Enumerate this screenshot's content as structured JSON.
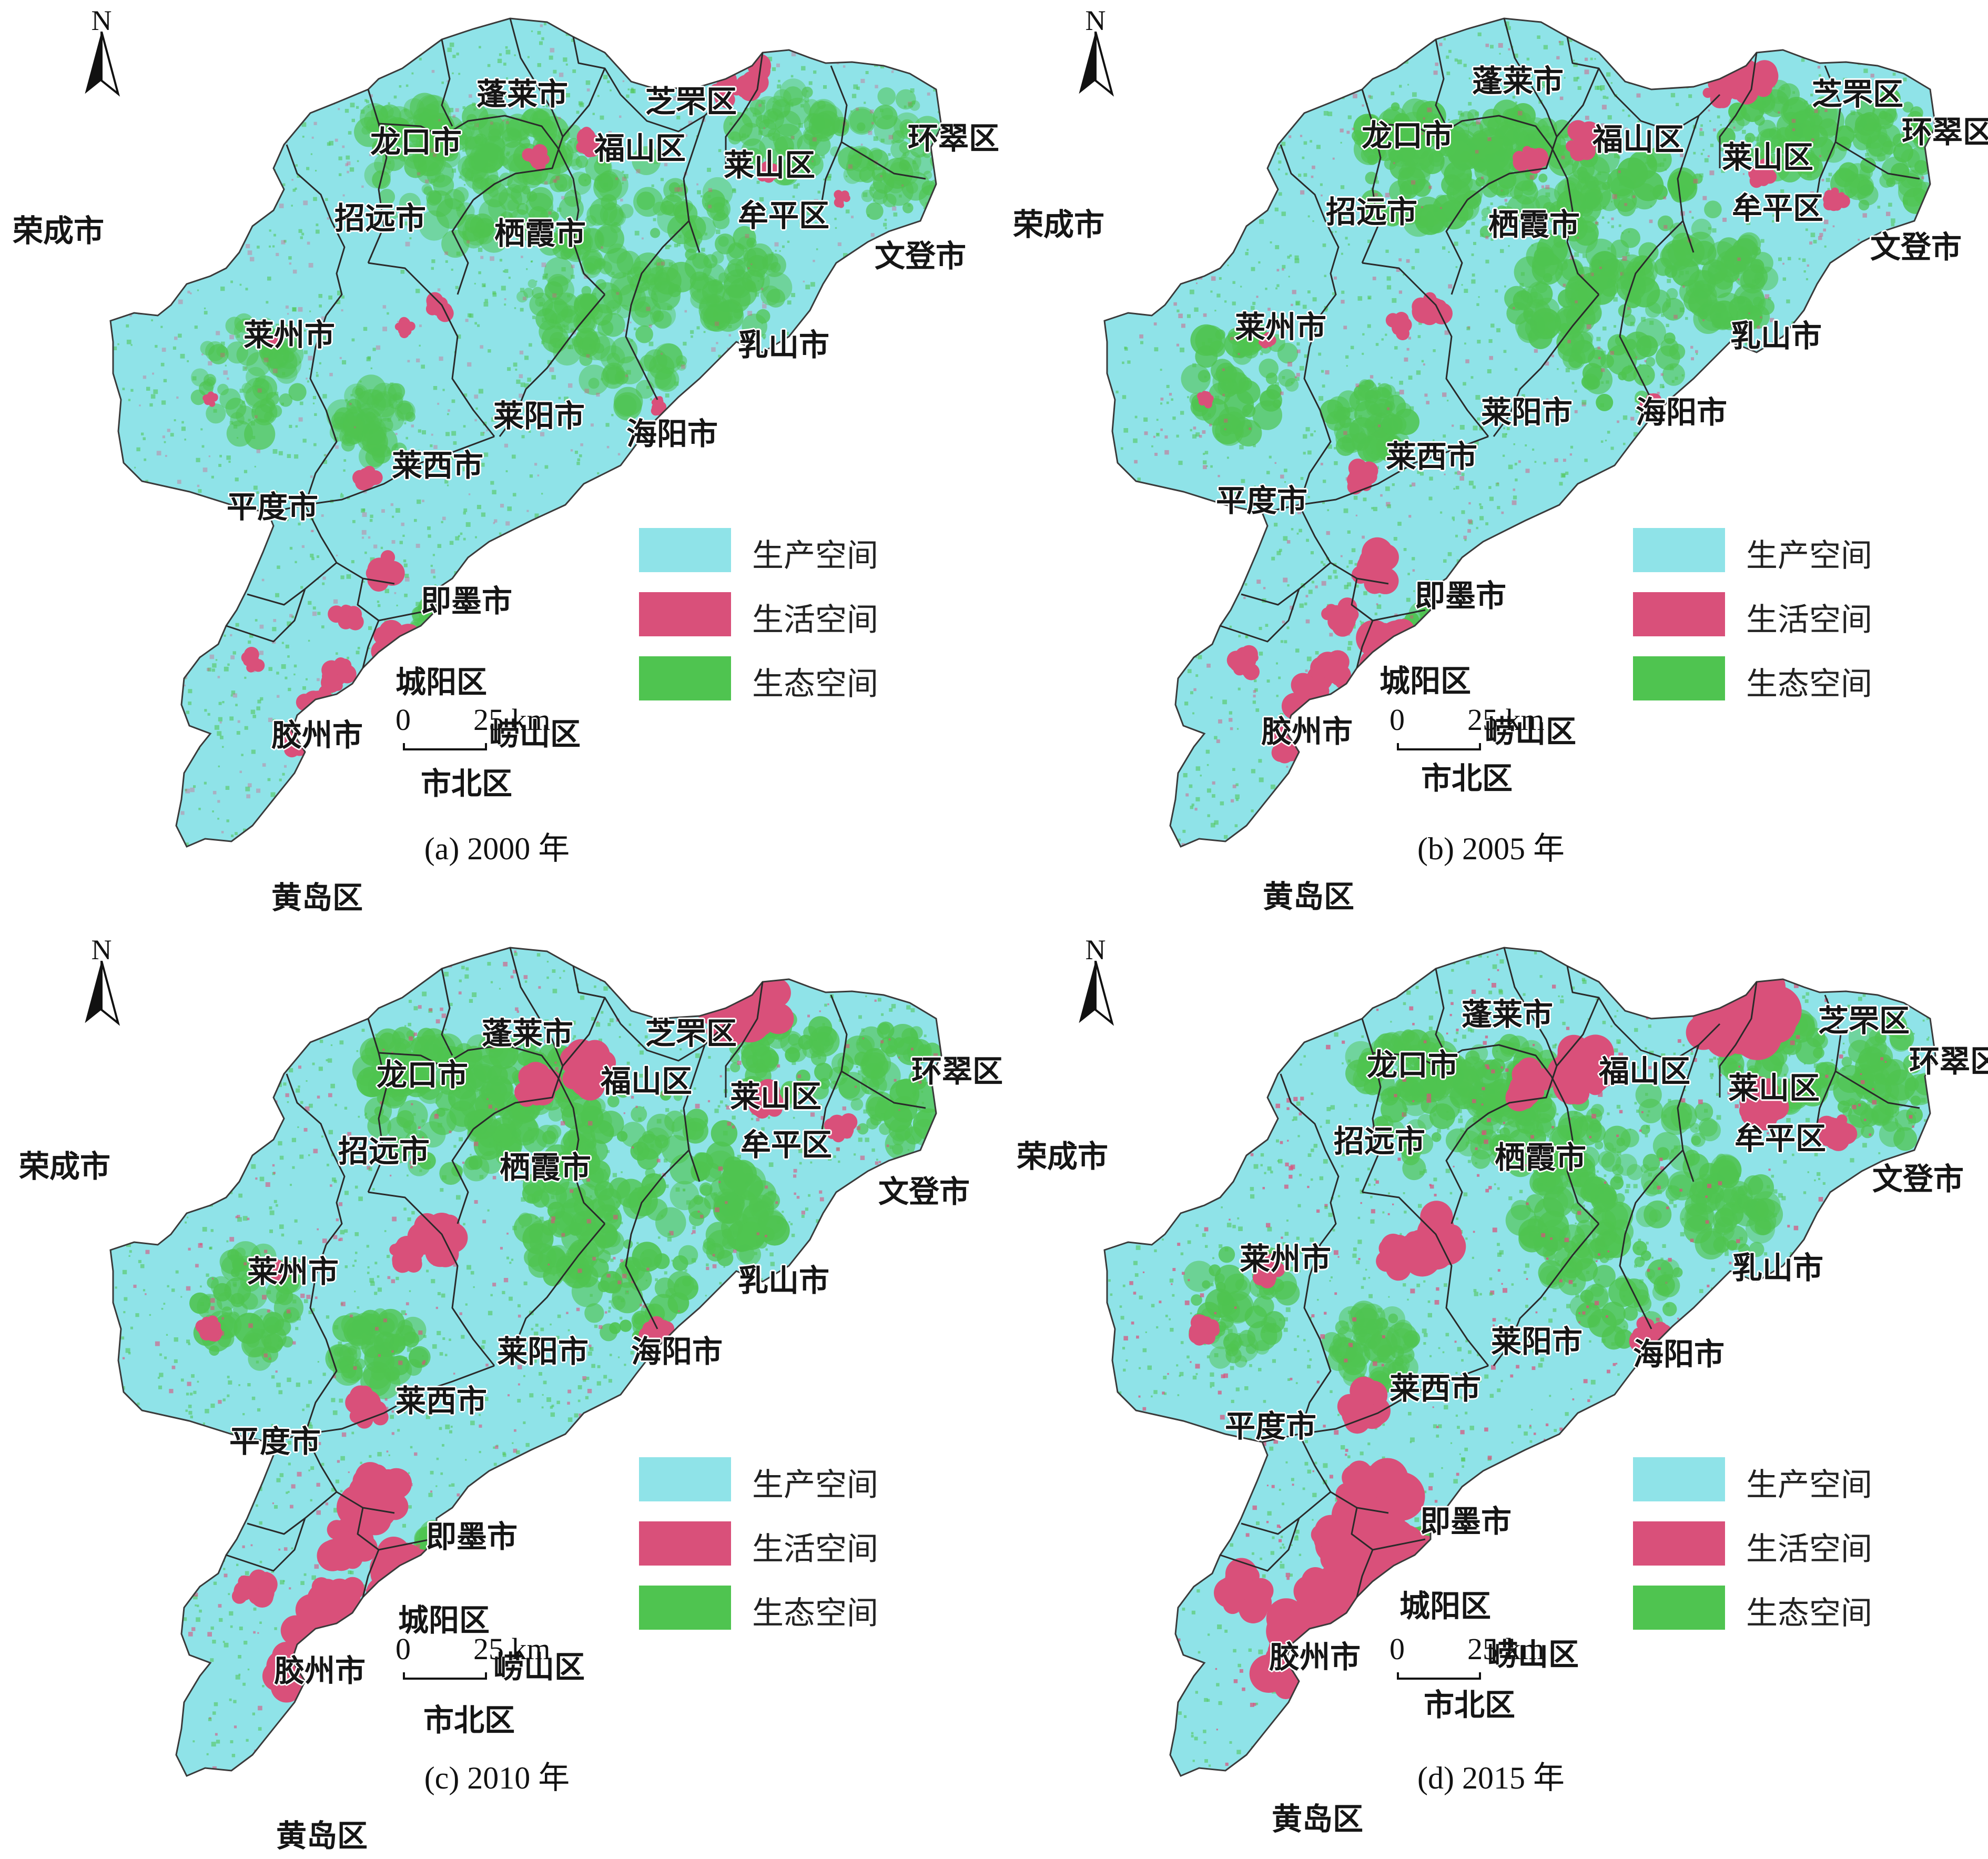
{
  "north_label": "N",
  "scale": {
    "zero": "0",
    "length": "25 km"
  },
  "legend": [
    {
      "label": "生产空间",
      "color": "#8fe3e8"
    },
    {
      "label": "生活空间",
      "color": "#d9507a"
    },
    {
      "label": "生态空间",
      "color": "#4fc450"
    }
  ],
  "districts": [
    "蓬莱市",
    "芝罘区",
    "龙口市",
    "福山区",
    "莱山区",
    "环翠区",
    "招远市",
    "栖霞市",
    "牟平区",
    "文登市",
    "荣成市",
    "莱州市",
    "乳山市",
    "莱阳市",
    "海阳市",
    "莱西市",
    "平度市",
    "即墨市",
    "城阳区",
    "胶州市",
    "崂山区",
    "市北区",
    "黄岛区"
  ],
  "panels": [
    {
      "caption": "(a) 2000 年",
      "year": 2000
    },
    {
      "caption": "(b) 2005 年",
      "year": 2005
    },
    {
      "caption": "(c) 2010 年",
      "year": 2010
    },
    {
      "caption": "(d) 2015 年",
      "year": 2015
    }
  ]
}
